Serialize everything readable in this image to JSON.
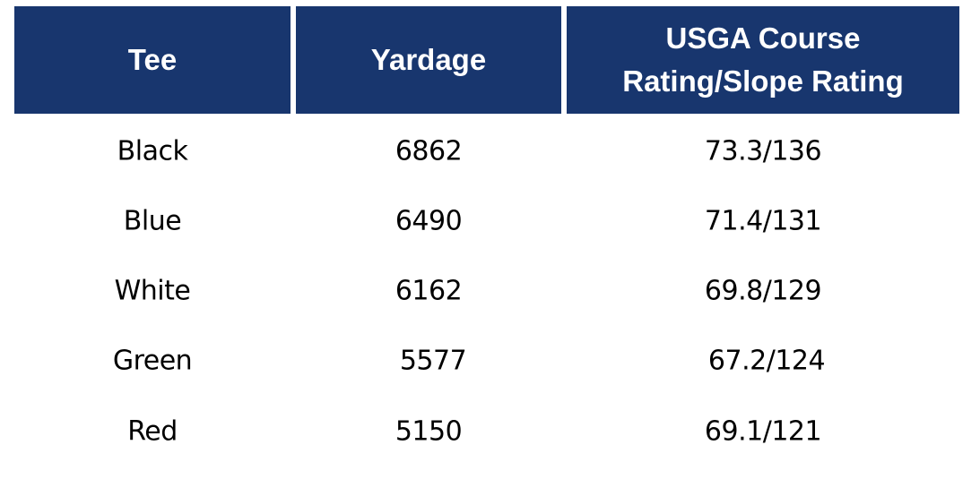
{
  "headers": [
    "Tee",
    "Yardage",
    "USGA Course\nRating/Slope Rating"
  ],
  "header_lines": [
    "USGA Course",
    "Rating/Slope Rating"
  ],
  "rows": [
    {
      "tee": "Black",
      "yardage": "6862",
      "rating": "73.3/136"
    },
    {
      "tee": "Blue",
      "yardage": "6490",
      "rating": "71.4/131"
    },
    {
      "tee": "White",
      "yardage": "6162",
      "rating": "69.8/129"
    },
    {
      "tee": "Green",
      "yardage": "5577",
      "rating": "67.2/124"
    },
    {
      "tee": "Red",
      "yardage": "5150",
      "rating": "69.1/121"
    }
  ],
  "colors": {
    "header_bg": "#18366e",
    "header_text": "#ffffff"
  }
}
